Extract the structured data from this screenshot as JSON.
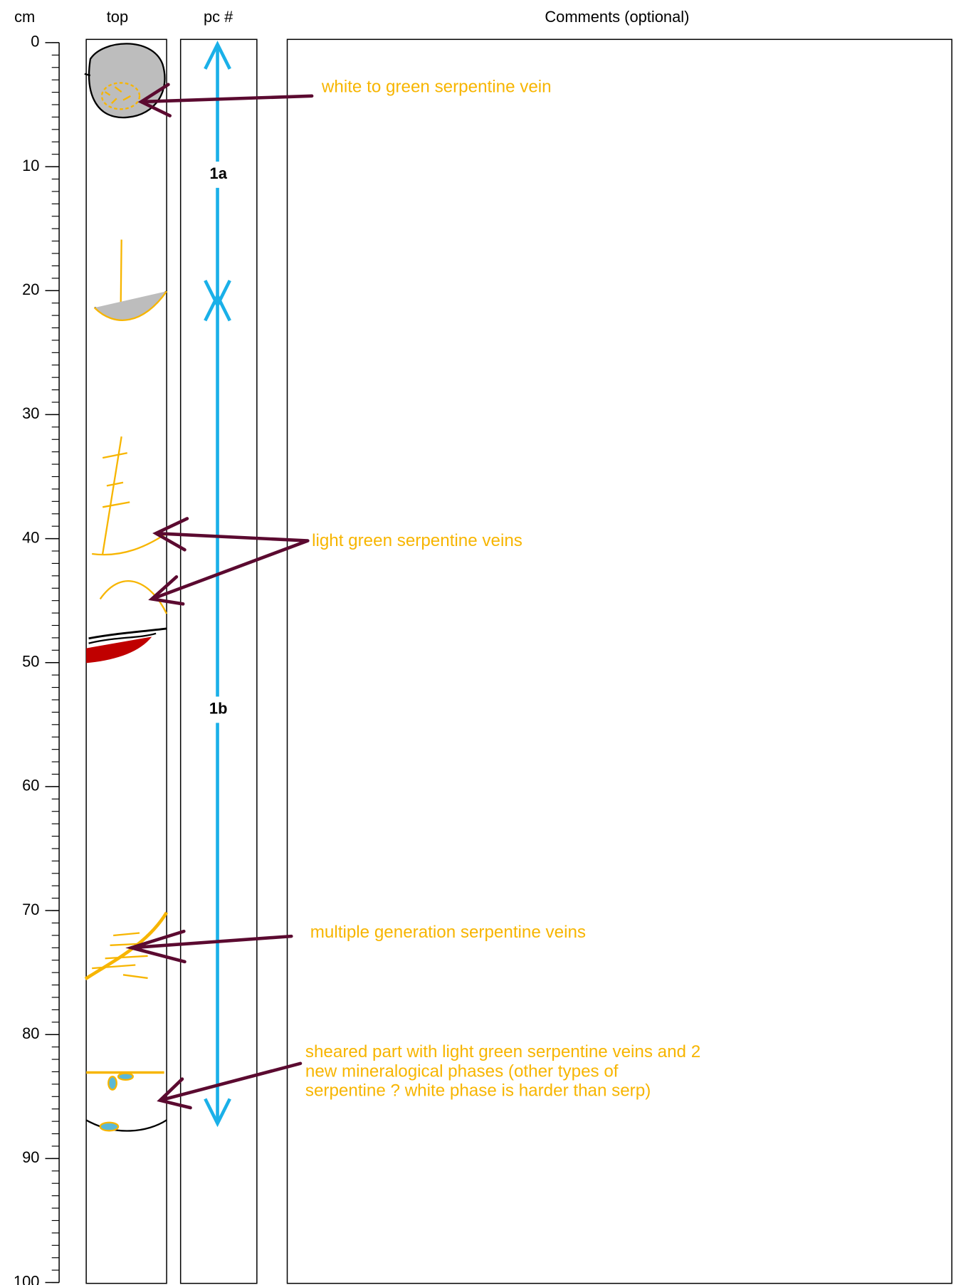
{
  "header": {
    "depth_unit": "cm",
    "core": "top",
    "piece": "pc #",
    "comments": "Comments (optional)"
  },
  "depth_scale": {
    "range": [
      0,
      100
    ],
    "ticks": [
      0,
      10,
      20,
      30,
      40,
      50,
      60,
      70,
      80,
      90,
      100
    ]
  },
  "pieces": [
    {
      "label": "1a",
      "top": 0,
      "bottom": 21.3
    },
    {
      "label": "1b",
      "top": 20.3,
      "bottom": 87.3
    }
  ],
  "annotations": [
    {
      "lines": [
        "white to green serpentine vein"
      ]
    },
    {
      "lines": [
        "light green serpentine veins"
      ]
    },
    {
      "lines": [
        "multiple generation serpentine veins"
      ]
    },
    {
      "lines": [
        "sheared part with light green serpentine veins and 2",
        "new mineralogical phases (other types of",
        "serpentine ? white phase is harder than serp)"
      ]
    }
  ]
}
